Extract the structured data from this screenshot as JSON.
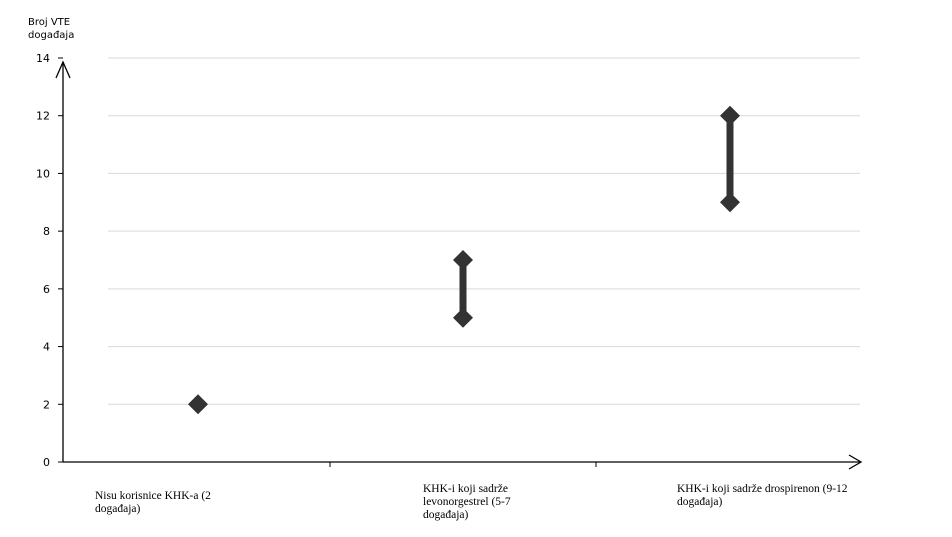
{
  "chart_data": {
    "type": "scatter",
    "ylabel": "Broj VTE događaja",
    "ylabel_lines": [
      "Broj VTE",
      "događaja"
    ],
    "xlabel": "",
    "ylim": [
      0,
      14
    ],
    "yticks": [
      0,
      2,
      4,
      6,
      8,
      10,
      12,
      14
    ],
    "grid": true,
    "categories": [
      "Nisu korisnice KHK-a (2 događaja)",
      "KHK-i koji sadrže levonorgestrel (5-7 događaja)",
      "KHK-i koji sadrže drospirenon (9-12 događaja)"
    ],
    "ranges": [
      {
        "category": "Nisu korisnice KHK-a (2 događaja)",
        "low": 2,
        "high": 2
      },
      {
        "category": "KHK-i koji sadrže levonorgestrel (5-7 događaja)",
        "low": 5,
        "high": 7
      },
      {
        "category": "KHK-i koji sadrže drospirenon (9-12 događaja)",
        "low": 9,
        "high": 12
      }
    ],
    "marker_color": "#333333",
    "grid_color": "#d9d9d9"
  },
  "category_labels": [
    "Nisu korisnice KHK-a (2 događaja)",
    "KHK-i koji sadrže levonorgestrel (5-7 događaja)",
    "KHK-i koji sadrže drospirenon (9-12 događaja)"
  ]
}
